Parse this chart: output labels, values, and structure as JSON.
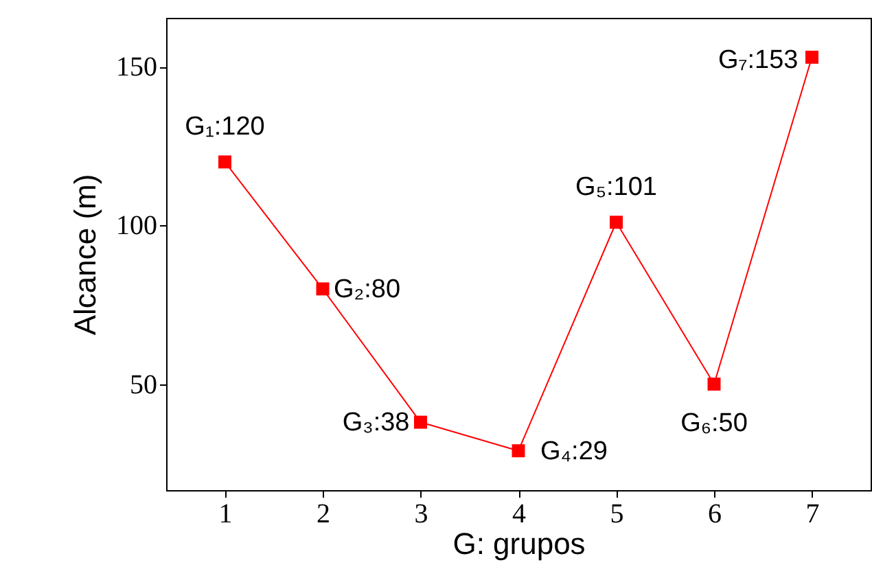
{
  "chart_data": {
    "type": "line",
    "xlabel": "G: grupos",
    "ylabel": "Alcance (m)",
    "x": [
      1,
      2,
      3,
      4,
      5,
      6,
      7
    ],
    "series": [
      {
        "color": "#ff0000",
        "values": [
          120,
          80,
          38,
          29,
          101,
          50,
          153
        ],
        "value_labels": [
          "G₁:120",
          "G₂:80",
          "G₃:38",
          "G₄:29",
          "G₅:101",
          "G₆:50",
          "G₇:153"
        ]
      }
    ],
    "xlim": [
      0.4,
      7.6
    ],
    "xticks": [
      1,
      2,
      3,
      4,
      5,
      6,
      7
    ],
    "ylim": [
      16.6,
      165.4
    ],
    "yticks": [
      50,
      100,
      150
    ],
    "marker": "square",
    "line_style": "solid",
    "grid": false
  }
}
